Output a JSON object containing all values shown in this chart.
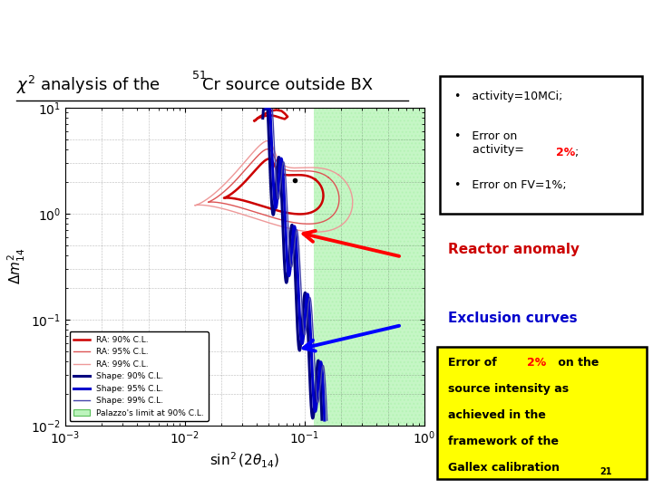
{
  "bg_color": "#ffffff",
  "header_color": "#cc0000",
  "header_text_color": "#ffffff",
  "plot_bg": "#ffffff",
  "green_region_color": "#90ee90",
  "ra90_color": "#cc0000",
  "ra95_color": "#dd5555",
  "ra99_color": "#ee9999",
  "shape90_color": "#000080",
  "shape95_color": "#0000cc",
  "shape99_color": "#4444aa",
  "yellow_box_color": "#ffff00",
  "red_color": "#cc0000",
  "blue_color": "#0000cc",
  "xlim": [
    0.001,
    1.0
  ],
  "ylim": [
    0.01,
    10.0
  ]
}
